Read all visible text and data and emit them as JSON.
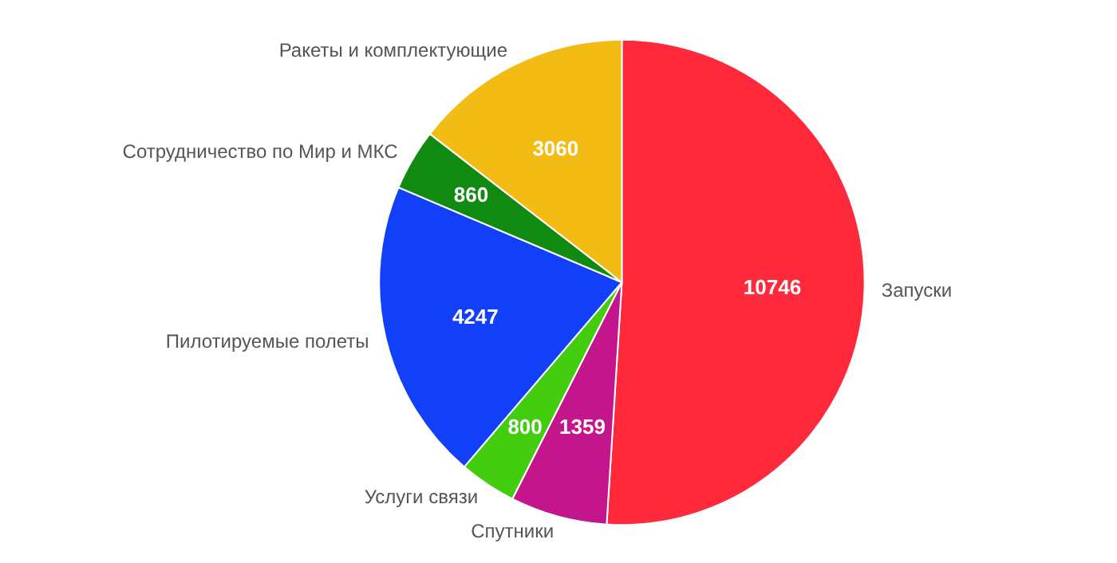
{
  "chart_data": {
    "type": "pie",
    "categories": [
      "Запуски",
      "Спутники",
      "Услуги связи",
      "Пилотируемые полеты",
      "Сотрудничество по Мир и МКС",
      "Ракеты и комплектующие"
    ],
    "values": [
      10746,
      1359,
      800,
      4247,
      860,
      3060
    ],
    "colors": [
      "#fe2a3c",
      "#c4168c",
      "#44cc0e",
      "#1240f8",
      "#108a10",
      "#f2bc15"
    ],
    "data_labels": true
  }
}
